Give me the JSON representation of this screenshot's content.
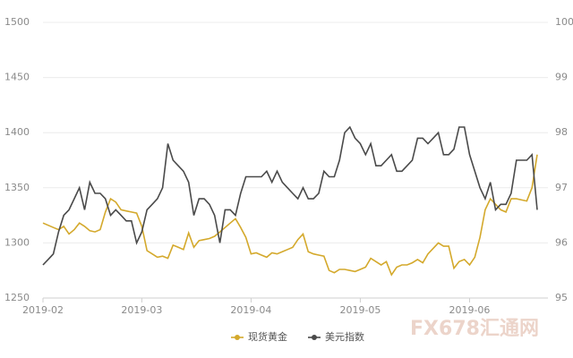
{
  "chart_data": {
    "type": "line",
    "categories": [
      "2019-02",
      null,
      null,
      null,
      null,
      null,
      null,
      null,
      null,
      null,
      null,
      null,
      null,
      null,
      null,
      null,
      null,
      null,
      null,
      "2019-03",
      null,
      null,
      null,
      null,
      null,
      null,
      null,
      null,
      null,
      null,
      null,
      null,
      null,
      null,
      null,
      null,
      null,
      null,
      null,
      null,
      "2019-04",
      null,
      null,
      null,
      null,
      null,
      null,
      null,
      null,
      null,
      null,
      null,
      null,
      null,
      null,
      null,
      null,
      null,
      null,
      null,
      null,
      "2019-05",
      null,
      null,
      null,
      null,
      null,
      null,
      null,
      null,
      null,
      null,
      null,
      null,
      null,
      null,
      null,
      null,
      null,
      null,
      null,
      null,
      "2019-06",
      null,
      null,
      null,
      null,
      null,
      null,
      null,
      null,
      null,
      null,
      null,
      null,
      null
    ],
    "series": [
      {
        "name": "现货黄金",
        "color": "#d4a92c",
        "values": [
          1318,
          1316,
          1314,
          1312,
          1315,
          1308,
          1312,
          1318,
          1315,
          1311,
          1310,
          1312,
          1328,
          1340,
          1337,
          1330,
          1329,
          1328,
          1327,
          1315,
          1293,
          1290,
          1287,
          1288,
          1286,
          1298,
          1296,
          1294,
          1309,
          1296,
          1302,
          1303,
          1304,
          1306,
          1310,
          1314,
          1318,
          1322,
          1314,
          1305,
          1290,
          1291,
          1289,
          1287,
          1291,
          1290,
          1292,
          1294,
          1296,
          1303,
          1308,
          1292,
          1290,
          1289,
          1288,
          1275,
          1273,
          1276,
          1276,
          1275,
          1274,
          1276,
          1278,
          1286,
          1283,
          1280,
          1283,
          1271,
          1278,
          1280,
          1280,
          1282,
          1285,
          1282,
          1290,
          1295,
          1300,
          1297,
          1297,
          1277,
          1283,
          1285,
          1280,
          1287,
          1305,
          1330,
          1340,
          1335,
          1330,
          1328,
          1340,
          1340,
          1339,
          1338,
          1350,
          1380
        ]
      },
      {
        "name": "美元指数",
        "color": "#4a4a4a",
        "axis": "y2",
        "values": [
          95.6,
          95.7,
          95.8,
          96.2,
          96.5,
          96.6,
          96.8,
          97.0,
          96.6,
          97.1,
          96.9,
          96.9,
          96.8,
          96.5,
          96.6,
          96.5,
          96.4,
          96.4,
          96.0,
          96.2,
          96.6,
          96.7,
          96.8,
          97.0,
          97.8,
          97.5,
          97.4,
          97.3,
          97.1,
          96.5,
          96.8,
          96.8,
          96.7,
          96.5,
          96.0,
          96.6,
          96.6,
          96.5,
          96.9,
          97.2,
          97.2,
          97.2,
          97.2,
          97.3,
          97.1,
          97.3,
          97.1,
          97.0,
          96.9,
          96.8,
          97.0,
          96.8,
          96.8,
          96.9,
          97.3,
          97.2,
          97.2,
          97.5,
          98.0,
          98.1,
          97.9,
          97.8,
          97.6,
          97.8,
          97.4,
          97.4,
          97.5,
          97.6,
          97.3,
          97.3,
          97.4,
          97.5,
          97.9,
          97.9,
          97.8,
          97.9,
          98.0,
          97.6,
          97.6,
          97.7,
          98.1,
          98.1,
          97.6,
          97.3,
          97.0,
          96.8,
          97.1,
          96.6,
          96.7,
          96.7,
          96.9,
          97.5,
          97.5,
          97.5,
          97.6,
          96.6
        ]
      }
    ],
    "ylim": [
      1250,
      1500
    ],
    "yticks": [
      1250,
      1300,
      1350,
      1400,
      1450,
      1500
    ],
    "y2lim": [
      95,
      100
    ],
    "y2ticks": [
      95,
      96,
      97,
      98,
      99,
      100
    ],
    "grid": true,
    "legend": "bottom"
  },
  "watermark": "FX678汇通网"
}
